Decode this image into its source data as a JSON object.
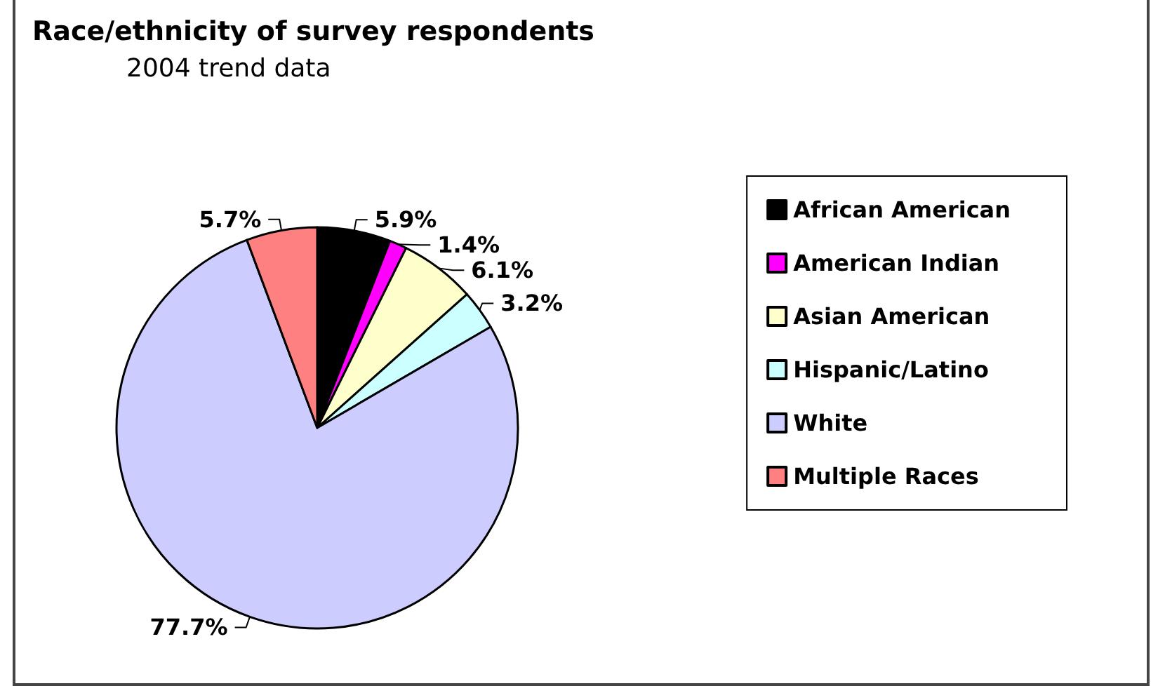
{
  "chart_data": {
    "type": "pie",
    "title": "Race/ethnicity of survey respondents",
    "subtitle": "2004 trend data",
    "categories": [
      "African American",
      "American Indian",
      "Asian American",
      "Hispanic/Latino",
      "White",
      "Multiple Races"
    ],
    "values": [
      5.9,
      1.4,
      6.1,
      3.2,
      77.7,
      5.7
    ],
    "colors": [
      "#000000",
      "#ff00ff",
      "#ffffcc",
      "#ccffff",
      "#ccccff",
      "#ff8080"
    ],
    "value_labels": [
      "5.9%",
      "1.4%",
      "6.1%",
      "3.2%",
      "77.7%",
      "5.7%"
    ],
    "legend": "right"
  }
}
